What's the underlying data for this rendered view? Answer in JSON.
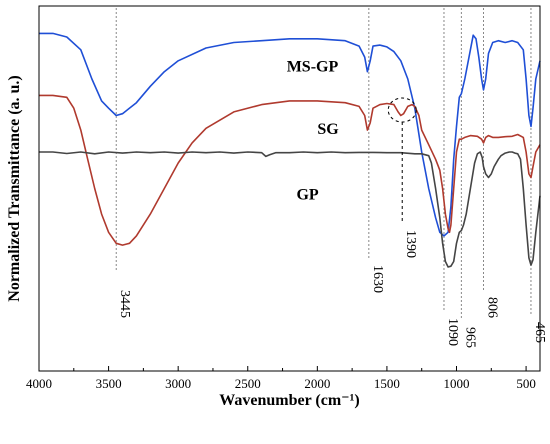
{
  "chart_data": {
    "type": "line",
    "xlabel": "Wavenumber (cm⁻¹)",
    "ylabel": "Normalized Transmittance (a. u.)",
    "xlim": [
      4000,
      400
    ],
    "x_reversed": true,
    "x_ticks": [
      4000,
      3500,
      3000,
      2500,
      2000,
      1500,
      1000,
      500
    ],
    "y_ticks_shown": false,
    "series": [
      {
        "name": "MS-GP",
        "color": "#1f4fd6",
        "points": [
          [
            4000,
            92.5
          ],
          [
            3900,
            92.5
          ],
          [
            3800,
            91.5
          ],
          [
            3700,
            88
          ],
          [
            3620,
            80
          ],
          [
            3550,
            74
          ],
          [
            3500,
            72
          ],
          [
            3445,
            70
          ],
          [
            3400,
            70.5
          ],
          [
            3300,
            73.5
          ],
          [
            3200,
            78
          ],
          [
            3100,
            82
          ],
          [
            3000,
            85
          ],
          [
            2800,
            88.5
          ],
          [
            2600,
            90
          ],
          [
            2400,
            90.5
          ],
          [
            2200,
            91
          ],
          [
            2000,
            91
          ],
          [
            1800,
            90.5
          ],
          [
            1700,
            89
          ],
          [
            1660,
            86
          ],
          [
            1640,
            82
          ],
          [
            1620,
            85
          ],
          [
            1600,
            89
          ],
          [
            1550,
            89.3
          ],
          [
            1500,
            88.8
          ],
          [
            1450,
            87.5
          ],
          [
            1400,
            85
          ],
          [
            1350,
            80
          ],
          [
            1300,
            72
          ],
          [
            1250,
            60
          ],
          [
            1200,
            50
          ],
          [
            1150,
            42
          ],
          [
            1120,
            38
          ],
          [
            1090,
            37
          ],
          [
            1060,
            38
          ],
          [
            1040,
            45
          ],
          [
            1020,
            58
          ],
          [
            1000,
            67
          ],
          [
            980,
            75
          ],
          [
            965,
            76
          ],
          [
            940,
            80
          ],
          [
            900,
            88
          ],
          [
            880,
            92
          ],
          [
            860,
            91
          ],
          [
            840,
            86
          ],
          [
            820,
            80
          ],
          [
            806,
            77
          ],
          [
            790,
            80
          ],
          [
            770,
            87
          ],
          [
            740,
            90
          ],
          [
            700,
            90.5
          ],
          [
            650,
            90
          ],
          [
            600,
            90.5
          ],
          [
            560,
            90
          ],
          [
            520,
            88
          ],
          [
            500,
            80
          ],
          [
            480,
            70
          ],
          [
            465,
            67
          ],
          [
            450,
            72
          ],
          [
            430,
            80
          ],
          [
            400,
            85
          ]
        ]
      },
      {
        "name": "SG",
        "color": "#b03a2e",
        "points": [
          [
            4000,
            75.5
          ],
          [
            3900,
            75.5
          ],
          [
            3800,
            75
          ],
          [
            3750,
            72
          ],
          [
            3700,
            66
          ],
          [
            3650,
            58
          ],
          [
            3600,
            50
          ],
          [
            3550,
            43
          ],
          [
            3500,
            38
          ],
          [
            3445,
            35
          ],
          [
            3400,
            34.5
          ],
          [
            3350,
            35
          ],
          [
            3300,
            37
          ],
          [
            3200,
            43
          ],
          [
            3100,
            50
          ],
          [
            3000,
            57
          ],
          [
            2900,
            62.5
          ],
          [
            2800,
            66.5
          ],
          [
            2600,
            71
          ],
          [
            2400,
            73
          ],
          [
            2200,
            74
          ],
          [
            2000,
            74
          ],
          [
            1800,
            73.5
          ],
          [
            1700,
            72.5
          ],
          [
            1660,
            70
          ],
          [
            1640,
            66
          ],
          [
            1620,
            68
          ],
          [
            1600,
            72
          ],
          [
            1550,
            73
          ],
          [
            1500,
            73.3
          ],
          [
            1450,
            73
          ],
          [
            1420,
            71
          ],
          [
            1400,
            70
          ],
          [
            1380,
            70.5
          ],
          [
            1350,
            72.5
          ],
          [
            1320,
            73
          ],
          [
            1300,
            72.5
          ],
          [
            1270,
            70
          ],
          [
            1250,
            66
          ],
          [
            1200,
            62
          ],
          [
            1150,
            58
          ],
          [
            1120,
            55
          ],
          [
            1100,
            50
          ],
          [
            1080,
            43
          ],
          [
            1060,
            39
          ],
          [
            1050,
            38
          ],
          [
            1040,
            40
          ],
          [
            1020,
            50
          ],
          [
            1000,
            60
          ],
          [
            980,
            63.5
          ],
          [
            965,
            63.5
          ],
          [
            940,
            64
          ],
          [
            900,
            64.5
          ],
          [
            850,
            64.3
          ],
          [
            820,
            63.5
          ],
          [
            806,
            62.5
          ],
          [
            790,
            64
          ],
          [
            770,
            64.5
          ],
          [
            740,
            64
          ],
          [
            700,
            64
          ],
          [
            650,
            64.2
          ],
          [
            600,
            64.3
          ],
          [
            560,
            64.8
          ],
          [
            520,
            64
          ],
          [
            500,
            60
          ],
          [
            480,
            54
          ],
          [
            465,
            53
          ],
          [
            450,
            56
          ],
          [
            430,
            60
          ],
          [
            400,
            62
          ]
        ]
      },
      {
        "name": "GP",
        "color": "#454545",
        "points": [
          [
            4000,
            60
          ],
          [
            3900,
            60
          ],
          [
            3800,
            59.6
          ],
          [
            3700,
            60
          ],
          [
            3600,
            59.5
          ],
          [
            3500,
            60
          ],
          [
            3400,
            59.7
          ],
          [
            3300,
            60
          ],
          [
            3200,
            59.8
          ],
          [
            3100,
            60
          ],
          [
            3000,
            59.7
          ],
          [
            2900,
            60
          ],
          [
            2800,
            59.8
          ],
          [
            2700,
            60
          ],
          [
            2600,
            59.7
          ],
          [
            2500,
            60
          ],
          [
            2400,
            59.8
          ],
          [
            2370,
            58.8
          ],
          [
            2340,
            59.3
          ],
          [
            2300,
            59.8
          ],
          [
            2200,
            59.8
          ],
          [
            2100,
            60
          ],
          [
            2000,
            59.8
          ],
          [
            1900,
            60
          ],
          [
            1800,
            59.8
          ],
          [
            1700,
            59.9
          ],
          [
            1600,
            59.9
          ],
          [
            1500,
            59.8
          ],
          [
            1400,
            59.8
          ],
          [
            1300,
            59.5
          ],
          [
            1250,
            59.5
          ],
          [
            1200,
            59
          ],
          [
            1180,
            57
          ],
          [
            1150,
            50
          ],
          [
            1120,
            42
          ],
          [
            1100,
            35
          ],
          [
            1080,
            30
          ],
          [
            1060,
            28.5
          ],
          [
            1040,
            28.7
          ],
          [
            1020,
            30
          ],
          [
            1000,
            35
          ],
          [
            980,
            38
          ],
          [
            965,
            38.5
          ],
          [
            950,
            40
          ],
          [
            930,
            43
          ],
          [
            900,
            50
          ],
          [
            870,
            57
          ],
          [
            850,
            59.5
          ],
          [
            830,
            60
          ],
          [
            815,
            58.5
          ],
          [
            806,
            56
          ],
          [
            790,
            54
          ],
          [
            770,
            53
          ],
          [
            750,
            54
          ],
          [
            730,
            56
          ],
          [
            700,
            58
          ],
          [
            680,
            59
          ],
          [
            650,
            59.7
          ],
          [
            620,
            60
          ],
          [
            600,
            60
          ],
          [
            580,
            59.7
          ],
          [
            560,
            59.5
          ],
          [
            540,
            58
          ],
          [
            520,
            50
          ],
          [
            500,
            40
          ],
          [
            480,
            31
          ],
          [
            465,
            29
          ],
          [
            450,
            30.5
          ],
          [
            430,
            38
          ],
          [
            400,
            48
          ]
        ]
      }
    ],
    "peak_labels": [
      {
        "x": 3445,
        "text": "3445"
      },
      {
        "x": 1630,
        "text": "1630"
      },
      {
        "x": 1390,
        "text": "1390"
      },
      {
        "x": 1090,
        "text": "1090"
      },
      {
        "x": 965,
        "text": "965"
      },
      {
        "x": 806,
        "text": "806"
      },
      {
        "x": 465,
        "text": "465"
      }
    ],
    "grid": false,
    "legend": "inline labels next to curves"
  }
}
